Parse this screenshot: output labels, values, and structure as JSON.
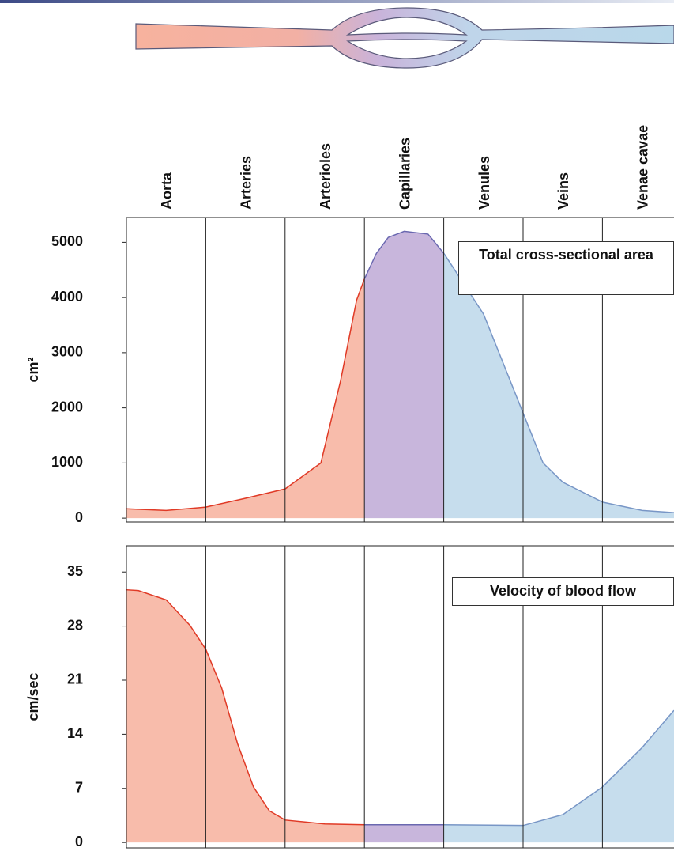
{
  "chart_data": [
    {
      "type": "area",
      "ylabel": "cm²",
      "annotation": "Total cross-sectional area",
      "categories": [
        "Aorta",
        "Arteries",
        "Arterioles",
        "Capillaries",
        "Venules",
        "Veins",
        "Venae cavae"
      ],
      "xlim": [
        0,
        6.9
      ],
      "ylim": [
        -70,
        5450
      ],
      "yticks": [
        0,
        1000,
        2000,
        3000,
        4000,
        5000
      ],
      "series": [
        {
          "color": "#e03a26",
          "fill": "#f8bcab",
          "x": [
            0,
            0.5,
            1,
            1.5,
            2,
            2.45,
            2.7,
            2.9,
            3
          ],
          "values": [
            170,
            140,
            200,
            360,
            530,
            1000,
            2500,
            3950,
            4340
          ]
        },
        {
          "color": "#6a68b0",
          "fill": "#c8b6dc",
          "x": [
            3,
            3.15,
            3.3,
            3.5,
            3.8,
            4
          ],
          "values": [
            4340,
            4800,
            5090,
            5200,
            5150,
            4800
          ]
        },
        {
          "color": "#7896c6",
          "fill": "#c6dded",
          "x": [
            4,
            4.5,
            5,
            5.25,
            5.5,
            6,
            6.5,
            6.9
          ],
          "values": [
            4800,
            3700,
            1900,
            1000,
            650,
            290,
            140,
            100
          ]
        }
      ]
    },
    {
      "type": "area",
      "ylabel": "cm/sec",
      "annotation": "Velocity of blood flow",
      "xlim": [
        0,
        6.9
      ],
      "ylim": [
        -0.7,
        38.4
      ],
      "yticks": [
        0,
        7,
        14,
        21,
        28,
        35
      ],
      "series": [
        {
          "color": "#e03a26",
          "fill": "#f8bcab",
          "x": [
            0,
            0.15,
            0.5,
            0.8,
            1,
            1.2,
            1.4,
            1.6,
            1.8,
            2,
            2.5,
            3
          ],
          "values": [
            32.7,
            32.6,
            31.4,
            28.1,
            25,
            20,
            12.8,
            7.2,
            4.1,
            2.9,
            2.4,
            2.3
          ]
        },
        {
          "color": "#6a68b0",
          "fill": "#c8b6dc",
          "x": [
            3,
            4
          ],
          "values": [
            2.3,
            2.3
          ]
        },
        {
          "color": "#7896c6",
          "fill": "#c6dded",
          "x": [
            4,
            5,
            5.5,
            6,
            6.5,
            6.9
          ],
          "values": [
            2.3,
            2.2,
            3.6,
            7.2,
            12.3,
            17.1
          ]
        }
      ]
    }
  ]
}
